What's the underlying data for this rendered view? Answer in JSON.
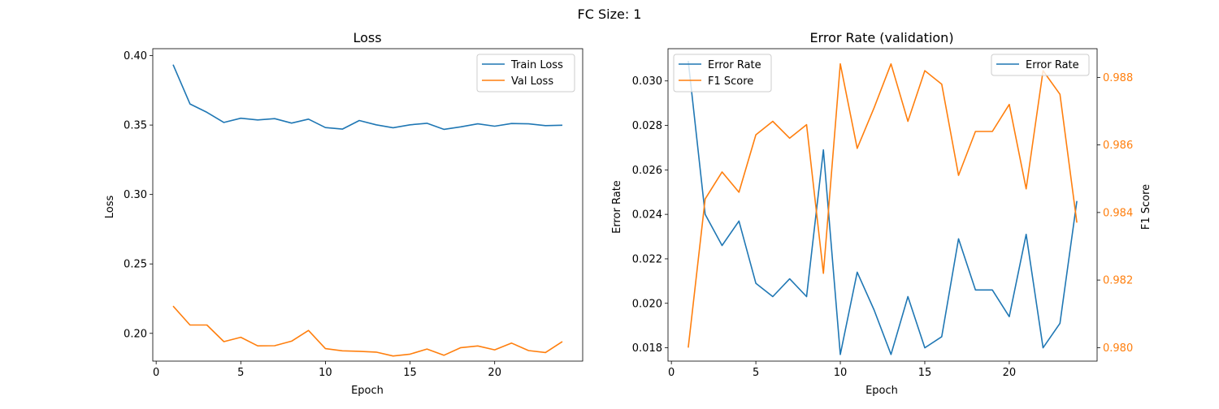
{
  "figure": {
    "suptitle": "FC Size: 1"
  },
  "chart_data": [
    {
      "type": "line",
      "title": "Loss",
      "xlabel": "Epoch",
      "ylabel": "Loss",
      "xlim": [
        -0.2,
        25.2
      ],
      "ylim": [
        0.18,
        0.405
      ],
      "xticks": [
        0,
        5,
        10,
        15,
        20
      ],
      "yticks": [
        0.2,
        0.25,
        0.3,
        0.35,
        0.4
      ],
      "ytick_labels": [
        "0.20",
        "0.25",
        "0.30",
        "0.35",
        "0.40"
      ],
      "grid": false,
      "legend_position": "upper right",
      "x": [
        1,
        2,
        3,
        4,
        5,
        6,
        7,
        8,
        9,
        10,
        11,
        12,
        13,
        14,
        15,
        16,
        17,
        18,
        19,
        20,
        21,
        22,
        23,
        24
      ],
      "series": [
        {
          "name": "Train Loss",
          "color": "#1f77b4",
          "values": [
            0.3935,
            0.3652,
            0.3592,
            0.3519,
            0.3549,
            0.3537,
            0.3546,
            0.3514,
            0.3543,
            0.3482,
            0.3471,
            0.3533,
            0.3502,
            0.3481,
            0.3502,
            0.3513,
            0.3469,
            0.3487,
            0.3509,
            0.3492,
            0.3511,
            0.3509,
            0.3496,
            0.3499
          ]
        },
        {
          "name": "Val Loss",
          "color": "#ff7f0e",
          "values": [
            0.2196,
            0.206,
            0.206,
            0.194,
            0.1972,
            0.191,
            0.1911,
            0.1944,
            0.2021,
            0.189,
            0.1874,
            0.1871,
            0.1865,
            0.1837,
            0.185,
            0.1887,
            0.1842,
            0.1897,
            0.1909,
            0.1881,
            0.193,
            0.1876,
            0.1862,
            0.1941
          ]
        }
      ]
    },
    {
      "type": "line",
      "title": "Error Rate (validation)",
      "xlabel": "Epoch",
      "ylabel": "Error Rate",
      "y2label": "F1 Score",
      "xlim": [
        -0.2,
        25.2
      ],
      "ylim": [
        0.0174,
        0.03145
      ],
      "y2lim": [
        0.9796,
        0.98885
      ],
      "xticks": [
        0,
        5,
        10,
        15,
        20
      ],
      "yticks": [
        0.018,
        0.02,
        0.022,
        0.024,
        0.026,
        0.028,
        0.03
      ],
      "ytick_labels": [
        "0.018",
        "0.020",
        "0.022",
        "0.024",
        "0.026",
        "0.028",
        "0.030"
      ],
      "y2ticks": [
        0.98,
        0.982,
        0.984,
        0.986,
        0.988
      ],
      "y2tick_labels": [
        "0.980",
        "0.982",
        "0.984",
        "0.986",
        "0.988"
      ],
      "y2_color": "#ff7f0e",
      "grid": false,
      "legend_position": "upper left",
      "legend2_position": "upper right",
      "legend2_entries": [
        {
          "name": "Error Rate",
          "color": "#1f77b4"
        }
      ],
      "x": [
        1,
        2,
        3,
        4,
        5,
        6,
        7,
        8,
        9,
        10,
        11,
        12,
        13,
        14,
        15,
        16,
        17,
        18,
        19,
        20,
        21,
        22,
        23,
        24
      ],
      "series": [
        {
          "name": "Error Rate",
          "axis": "left",
          "color": "#1f77b4",
          "values": [
            0.0309,
            0.024,
            0.0226,
            0.0237,
            0.0209,
            0.0203,
            0.0211,
            0.0203,
            0.0269,
            0.0177,
            0.0214,
            0.0197,
            0.0177,
            0.0203,
            0.018,
            0.0185,
            0.0229,
            0.0206,
            0.0206,
            0.0194,
            0.0231,
            0.018,
            0.0191,
            0.0246
          ]
        },
        {
          "name": "F1 Score",
          "axis": "right",
          "color": "#ff7f0e",
          "values": [
            0.98,
            0.9844,
            0.9852,
            0.9846,
            0.9863,
            0.9867,
            0.9862,
            0.9866,
            0.9822,
            0.9884,
            0.9859,
            0.9871,
            0.9884,
            0.9867,
            0.9882,
            0.9878,
            0.9851,
            0.9864,
            0.9864,
            0.9872,
            0.9847,
            0.9882,
            0.9875,
            0.9837
          ]
        }
      ]
    }
  ]
}
